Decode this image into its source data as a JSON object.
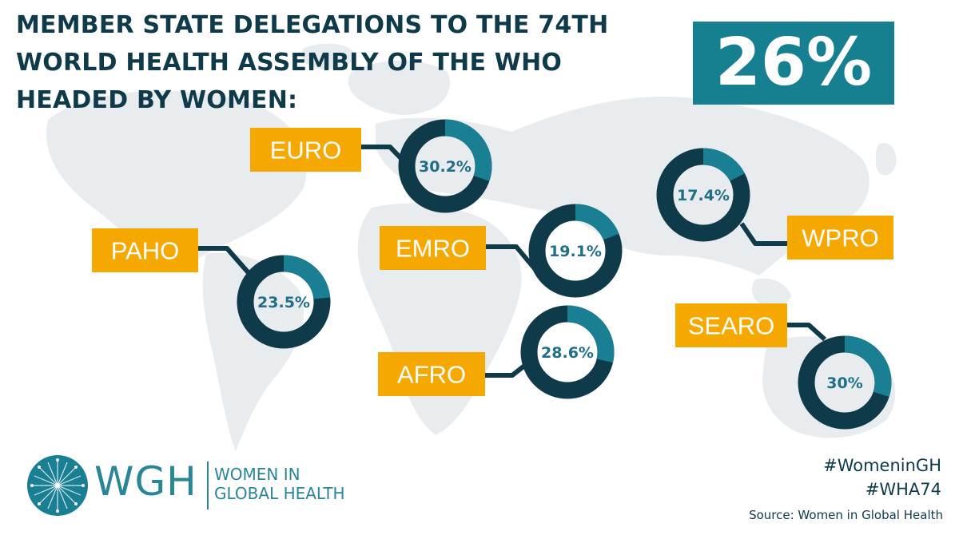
{
  "title_lines": [
    "MEMBER STATE DELEGATIONS TO THE 74TH",
    "WORLD HEALTH ASSEMBLY OF THE WHO",
    "HEADED BY WOMEN:"
  ],
  "headline_value": "26%",
  "chart_data": {
    "type": "donut",
    "title": "MEMBER STATE DELEGATIONS TO THE 74TH WORLD HEALTH ASSEMBLY OF THE WHO HEADED BY WOMEN:",
    "overall": {
      "value": 26,
      "label": "26%"
    },
    "series": [
      {
        "name": "EURO",
        "value": 30.2,
        "label": "30.2%"
      },
      {
        "name": "PAHO",
        "value": 23.5,
        "label": "23.5%"
      },
      {
        "name": "EMRO",
        "value": 19.1,
        "label": "19.1%"
      },
      {
        "name": "AFRO",
        "value": 28.6,
        "label": "28.6%"
      },
      {
        "name": "WPRO",
        "value": 17.4,
        "label": "17.4%"
      },
      {
        "name": "SEARO",
        "value": 30,
        "label": "30%"
      }
    ],
    "colors": {
      "filled": "#1b7f93",
      "remainder": "#0f3a4a",
      "label_box": "#f5a800",
      "map": "#e8ecef"
    }
  },
  "logo": {
    "abbr": "WGH",
    "name_lines": [
      "WOMEN IN",
      "GLOBAL HEALTH"
    ]
  },
  "hashtags": [
    "#WomeninGH",
    "#WHA74"
  ],
  "source": "Source: Women in Global Health"
}
